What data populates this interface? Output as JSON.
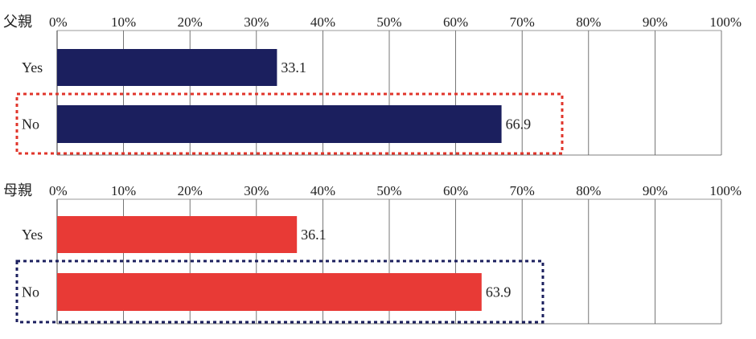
{
  "chart_data": [
    {
      "type": "bar",
      "orientation": "horizontal",
      "title": "父親",
      "categories": [
        "Yes",
        "No"
      ],
      "values": [
        33.1,
        66.9
      ],
      "value_labels": [
        "33.1",
        "66.9"
      ],
      "xlim": [
        0,
        100
      ],
      "ticks": [
        "0%",
        "10%",
        "20%",
        "30%",
        "40%",
        "50%",
        "60%",
        "70%",
        "80%",
        "90%",
        "100%"
      ],
      "bar_color": "#1b1f5e",
      "highlight": {
        "category": "No",
        "style": "dotted",
        "color": "#e0352b"
      }
    },
    {
      "type": "bar",
      "orientation": "horizontal",
      "title": "母親",
      "categories": [
        "Yes",
        "No"
      ],
      "values": [
        36.1,
        63.9
      ],
      "value_labels": [
        "36.1",
        "63.9"
      ],
      "xlim": [
        0,
        100
      ],
      "ticks": [
        "0%",
        "10%",
        "20%",
        "30%",
        "40%",
        "50%",
        "60%",
        "70%",
        "80%",
        "90%",
        "100%"
      ],
      "bar_color": "#e83a36",
      "highlight": {
        "category": "No",
        "style": "dotted",
        "color": "#1b1f5e"
      }
    }
  ]
}
